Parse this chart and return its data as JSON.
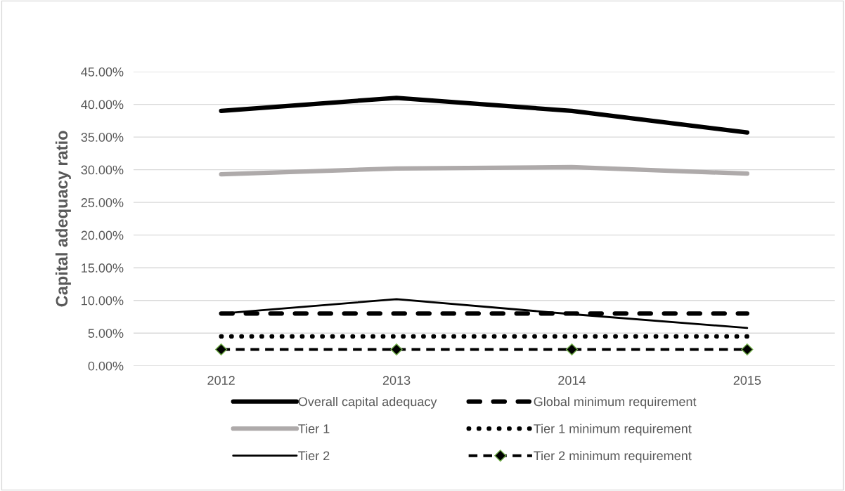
{
  "chart_data": {
    "type": "line",
    "ylabel": "Capital adequacy ratio",
    "categories": [
      "2012",
      "2013",
      "2014",
      "2015"
    ],
    "series": [
      {
        "name": "Overall capital adequacy",
        "color": "#000000",
        "values": [
          39.0,
          41.0,
          39.0,
          35.7
        ],
        "line_style": "solid"
      },
      {
        "name": "Tier 1",
        "color": "#aeaaaa",
        "values": [
          29.3,
          30.2,
          30.4,
          29.4
        ],
        "line_style": "solid"
      },
      {
        "name": "Tier 2",
        "color": "#000000",
        "values": [
          8.0,
          10.2,
          7.9,
          5.8
        ],
        "line_style": "solid"
      },
      {
        "name": "Global minimum requirement",
        "color": "#000000",
        "values": [
          8,
          8,
          8,
          8
        ],
        "line_style": "dashed"
      },
      {
        "name": "Tier 1 minimum requirement",
        "color": "#000000",
        "values": [
          4.5,
          4.5,
          4.5,
          4.5
        ],
        "line_style": "dotted"
      },
      {
        "name": "Tier 2 minimum requirement",
        "color": "#000000",
        "values": [
          2.5,
          2.5,
          2.5,
          2.5
        ],
        "line_style": "dashed",
        "marker": "diamond"
      }
    ],
    "ylim": [
      0,
      45
    ],
    "yticks": [
      {
        "value": 0,
        "label": "0.00%"
      },
      {
        "value": 5,
        "label": "5.00%"
      },
      {
        "value": 10,
        "label": "10.00%"
      },
      {
        "value": 15,
        "label": "15.00%"
      },
      {
        "value": 20,
        "label": "20.00%"
      },
      {
        "value": 25,
        "label": "25.00%"
      },
      {
        "value": 30,
        "label": "30.00%"
      },
      {
        "value": 35,
        "label": "35.00%"
      },
      {
        "value": 40,
        "label": "40.00%"
      },
      {
        "value": 45,
        "label": "45.00%"
      }
    ],
    "grid": "y",
    "legend": "bottom"
  }
}
